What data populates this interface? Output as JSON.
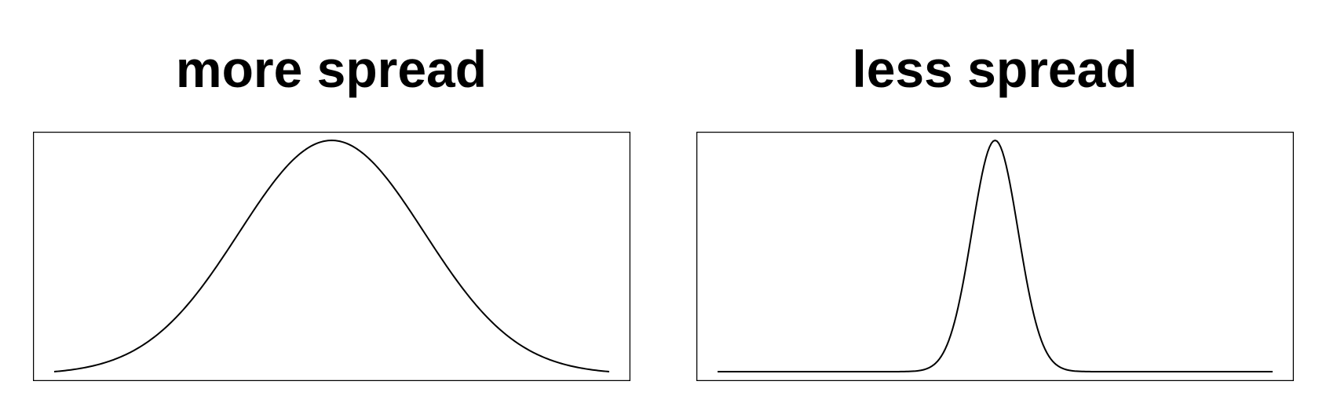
{
  "charts": [
    {
      "title": "more spread",
      "chart_data": {
        "type": "line",
        "title": "more spread",
        "xlabel": "",
        "ylabel": "",
        "axes_shown": false,
        "grid": false,
        "curve": "normal-density",
        "mean": 0,
        "sd": 1,
        "xlim": [
          -3,
          3
        ],
        "ylim": [
          0.0044,
          0.399
        ],
        "series": [
          {
            "x": [
              -3.0,
              -2.5,
              -2.0,
              -1.5,
              -1.0,
              -0.5,
              0.0,
              0.5,
              1.0,
              1.5,
              2.0,
              2.5,
              3.0
            ],
            "values": [
              0.0044,
              0.0175,
              0.054,
              0.1295,
              0.242,
              0.3521,
              0.399,
              0.3521,
              0.242,
              0.1295,
              0.054,
              0.0175,
              0.0044
            ]
          }
        ]
      }
    },
    {
      "title": "less spread",
      "chart_data": {
        "type": "line",
        "title": "less spread",
        "xlabel": "",
        "ylabel": "",
        "axes_shown": false,
        "grid": false,
        "curve": "normal-density",
        "mean": 0,
        "sd": 0.25,
        "xlim": [
          -3,
          3
        ],
        "ylim": [
          0,
          1.596
        ],
        "series": [
          {
            "x": [
              -3.0,
              -1.0,
              -0.75,
              -0.5,
              -0.25,
              0.0,
              0.25,
              0.5,
              0.75,
              1.0,
              3.0
            ],
            "values": [
              0.0,
              0.0005,
              0.0177,
              0.216,
              0.968,
              1.596,
              0.968,
              0.216,
              0.0177,
              0.0005,
              0.0
            ]
          }
        ]
      }
    }
  ],
  "colors": {
    "line": "#000000",
    "frame": "#000000",
    "background": "#ffffff"
  }
}
